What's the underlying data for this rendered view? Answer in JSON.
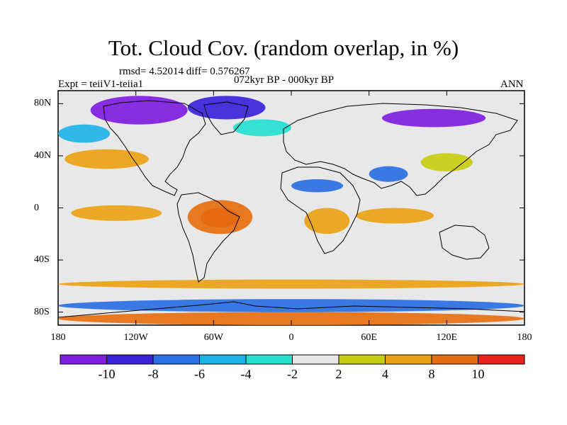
{
  "title": "Tot. Cloud Cov. (random overlap, in %)",
  "stats_text": "rmsd= 4.52014 diff= 0.576267",
  "experiment_text": "Expt = teiiV1-teiia1",
  "period_text": "072kyr BP - 000kyr BP",
  "season_text": "ANN",
  "map": {
    "lon_range": [
      -180,
      180
    ],
    "lat_range": [
      -90,
      90
    ],
    "continent_outline_color": "#000000",
    "background_color": "#e8e8e8"
  },
  "axes": {
    "y_ticks": [
      {
        "label": "80N",
        "lat": 80
      },
      {
        "label": "40N",
        "lat": 40
      },
      {
        "label": "0",
        "lat": 0
      },
      {
        "label": "40S",
        "lat": -40
      },
      {
        "label": "80S",
        "lat": -80
      }
    ],
    "x_ticks": [
      {
        "label": "180",
        "lon": -180
      },
      {
        "label": "120W",
        "lon": -120
      },
      {
        "label": "60W",
        "lon": -60
      },
      {
        "label": "0",
        "lon": 0
      },
      {
        "label": "60E",
        "lon": 60
      },
      {
        "label": "120E",
        "lon": 120
      },
      {
        "label": "180",
        "lon": 180
      }
    ]
  },
  "colorbar": {
    "colors": [
      "#7f1de0",
      "#3a22d9",
      "#2a6fe3",
      "#1eb3e8",
      "#25e0cf",
      "#e6e6e6",
      "#c8cc10",
      "#eaa215",
      "#e56f10",
      "#e8211a"
    ],
    "labels": [
      {
        "text": "-10",
        "boundary": 1
      },
      {
        "text": "-8",
        "boundary": 2
      },
      {
        "text": "-6",
        "boundary": 3
      },
      {
        "text": "-4",
        "boundary": 4
      },
      {
        "text": "-2",
        "boundary": 5
      },
      {
        "text": "2",
        "boundary": 6
      },
      {
        "text": "4",
        "boundary": 7
      },
      {
        "text": "8",
        "boundary": 8
      },
      {
        "text": "10",
        "boundary": 9
      }
    ]
  },
  "anomaly_regions": [
    {
      "name": "arctic-canada-decrease",
      "color": "#7f1de0",
      "lon": [
        -155,
        -80
      ],
      "lat": [
        64,
        86
      ]
    },
    {
      "name": "greenland-arctic-decrease",
      "color": "#3a22d9",
      "lon": [
        -80,
        -20
      ],
      "lat": [
        68,
        86
      ]
    },
    {
      "name": "siberia-decrease",
      "color": "#7f1de0",
      "lon": [
        70,
        150
      ],
      "lat": [
        62,
        76
      ]
    },
    {
      "name": "north-pacific-cyan",
      "color": "#1eb3e8",
      "lon": [
        -180,
        -140
      ],
      "lat": [
        50,
        64
      ]
    },
    {
      "name": "north-atlantic-cyan",
      "color": "#25e0cf",
      "lon": [
        -45,
        0
      ],
      "lat": [
        55,
        68
      ]
    },
    {
      "name": "sahara-blue",
      "color": "#2a6fe3",
      "lon": [
        0,
        40
      ],
      "lat": [
        12,
        22
      ]
    },
    {
      "name": "india-blue",
      "color": "#2a6fe3",
      "lon": [
        60,
        90
      ],
      "lat": [
        20,
        32
      ]
    },
    {
      "name": "china-yellow",
      "color": "#c8cc10",
      "lon": [
        100,
        140
      ],
      "lat": [
        28,
        42
      ]
    },
    {
      "name": "north-pacific-orange",
      "color": "#eaa215",
      "lon": [
        -175,
        -110
      ],
      "lat": [
        30,
        45
      ]
    },
    {
      "name": "east-pacific-orange",
      "color": "#eaa215",
      "lon": [
        -170,
        -100
      ],
      "lat": [
        -10,
        2
      ]
    },
    {
      "name": "amazon-red",
      "color": "#e8211a",
      "lon": [
        -70,
        -40
      ],
      "lat": [
        -15,
        0
      ]
    },
    {
      "name": "amazon-orange",
      "color": "#e56f10",
      "lon": [
        -80,
        -30
      ],
      "lat": [
        -20,
        6
      ]
    },
    {
      "name": "central-africa-orange",
      "color": "#eaa215",
      "lon": [
        10,
        45
      ],
      "lat": [
        -20,
        0
      ]
    },
    {
      "name": "indian-ocean-orange",
      "color": "#eaa215",
      "lon": [
        50,
        110
      ],
      "lat": [
        -12,
        0
      ]
    },
    {
      "name": "southern-ocean-orange",
      "color": "#eaa215",
      "lon": [
        -180,
        180
      ],
      "lat": [
        -62,
        -55
      ]
    },
    {
      "name": "antarctic-red",
      "color": "#e56f10",
      "lon": [
        -180,
        180
      ],
      "lat": [
        -90,
        -80
      ]
    },
    {
      "name": "antarctic-blue",
      "color": "#2a6fe3",
      "lon": [
        -180,
        180
      ],
      "lat": [
        -80,
        -70
      ]
    }
  ]
}
